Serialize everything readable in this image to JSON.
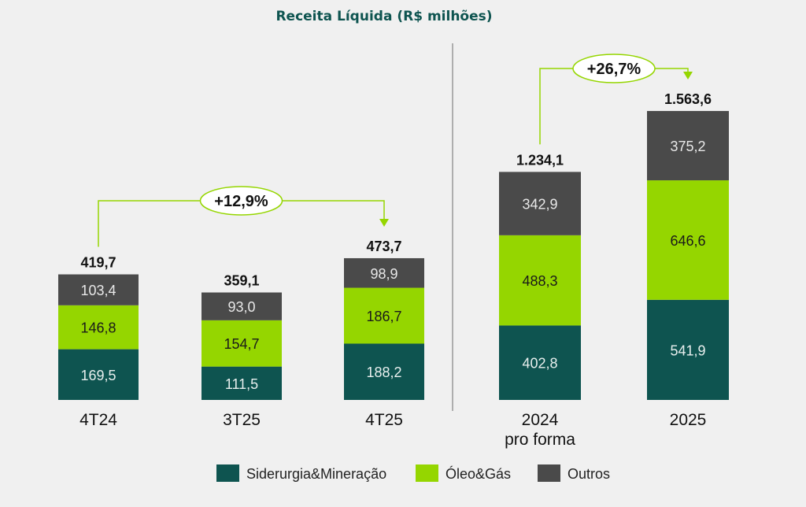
{
  "chart_data": {
    "type": "bar",
    "stacked": true,
    "title": "Receita Líquida (R$ milhões)",
    "colors": {
      "Siderurgia&Mineração": "#0e5450",
      "Óleo&Gás": "#95d600",
      "Outros": "#4a4a4a",
      "title": "#0e5450",
      "arrow": "#95d600"
    },
    "panels": [
      {
        "categories": [
          [
            "4T24"
          ],
          [
            "3T25"
          ],
          [
            "4T25"
          ]
        ],
        "series": [
          {
            "name": "Siderurgia&Mineração",
            "values": [
              169.5,
              111.5,
              188.2
            ],
            "labels": [
              "169,5",
              "111,5",
              "188,2"
            ]
          },
          {
            "name": "Óleo&Gás",
            "values": [
              146.8,
              154.7,
              186.7
            ],
            "labels": [
              "146,8",
              "154,7",
              "186,7"
            ]
          },
          {
            "name": "Outros",
            "values": [
              103.4,
              93.0,
              98.9
            ],
            "labels": [
              "103,4",
              "93,0",
              "98,9"
            ]
          }
        ],
        "totals": [
          419.7,
          359.1,
          473.7
        ],
        "total_labels": [
          "419,7",
          "359,1",
          "473,7"
        ],
        "growth": {
          "from": 0,
          "to": 2,
          "label": "+12,9%"
        }
      },
      {
        "categories": [
          [
            "2024",
            "pro forma"
          ],
          [
            "2025"
          ]
        ],
        "series": [
          {
            "name": "Siderurgia&Mineração",
            "values": [
              402.8,
              541.9
            ],
            "labels": [
              "402,8",
              "541,9"
            ]
          },
          {
            "name": "Óleo&Gás",
            "values": [
              488.3,
              646.6
            ],
            "labels": [
              "488,3",
              "646,6"
            ]
          },
          {
            "name": "Outros",
            "values": [
              342.9,
              375.2
            ],
            "labels": [
              "342,9",
              "375,2"
            ]
          }
        ],
        "totals": [
          1234.1,
          1563.6
        ],
        "total_labels": [
          "1.234,1",
          "1.563,6"
        ],
        "growth": {
          "from": 0,
          "to": 1,
          "label": "+26,7%"
        }
      }
    ],
    "legend": {
      "position": "bottom",
      "entries": [
        "Siderurgia&Mineração",
        "Óleo&Gás",
        "Outros"
      ]
    }
  }
}
